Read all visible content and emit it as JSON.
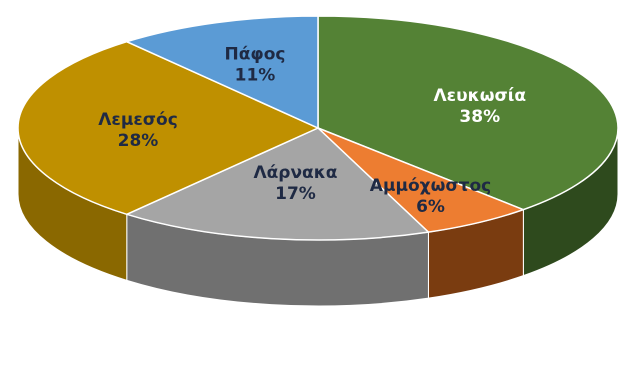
{
  "chart_data": {
    "type": "pie",
    "style": "3d",
    "slices": [
      {
        "name": "Λευκωσία",
        "value": 38,
        "label": "38%",
        "color": "#548235",
        "side_color": "#2e4a1d",
        "label_color": "#ffffff"
      },
      {
        "name": "Αμμόχωστος",
        "value": 6,
        "label": "6%",
        "color": "#ed7d31",
        "side_color": "#7a3c10",
        "label_color": "#1f2a44"
      },
      {
        "name": "Λάρνακα",
        "value": 17,
        "label": "17%",
        "color": "#a5a5a5",
        "side_color": "#707070",
        "label_color": "#1f2a44"
      },
      {
        "name": "Λεμεσός",
        "value": 28,
        "label": "28%",
        "color": "#bf9000",
        "side_color": "#8a6800",
        "label_color": "#1f2a44"
      },
      {
        "name": "Πάφος",
        "value": 11,
        "label": "11%",
        "color": "#5b9bd5",
        "side_color": "#3a6d9a",
        "label_color": "#1f2a44"
      }
    ]
  }
}
